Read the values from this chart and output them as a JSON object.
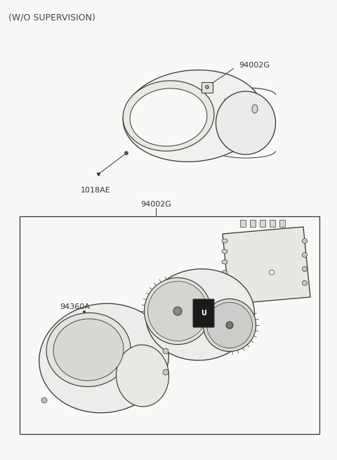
{
  "bg": "#f8f8f6",
  "lc": "#333333",
  "title": "(W/O SUPERVISION)",
  "label_top_part": "94002G",
  "label_screw": "1018AE",
  "label_box_part": "94002G",
  "label_bottom_part": "94360A",
  "fig_w": 4.8,
  "fig_h": 6.55,
  "dpi": 100
}
